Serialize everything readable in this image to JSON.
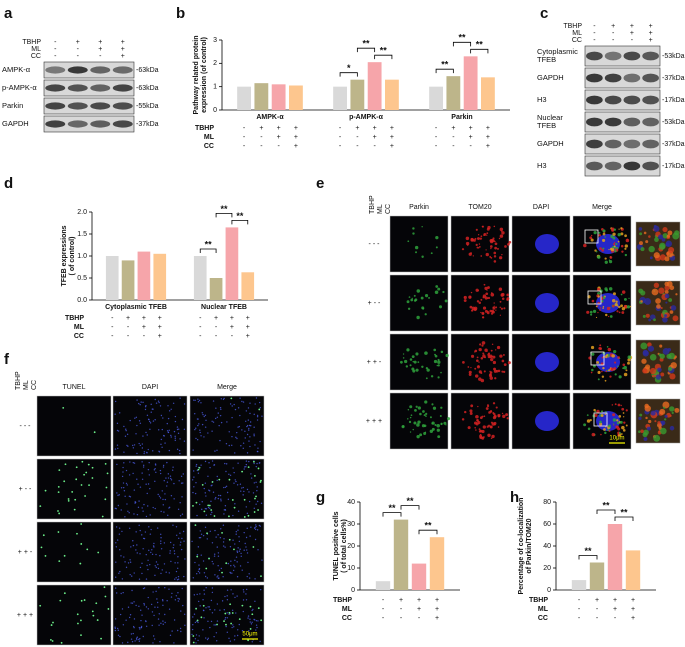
{
  "panel_labels": [
    "a",
    "b",
    "c",
    "d",
    "e",
    "f",
    "g",
    "h"
  ],
  "blot_a": {
    "header": [
      {
        "name": "TBHP",
        "marks": [
          "-",
          "+",
          "+",
          "+"
        ]
      },
      {
        "name": "ML",
        "marks": [
          "-",
          "-",
          "+",
          "+"
        ]
      },
      {
        "name": "CC",
        "marks": [
          "-",
          "-",
          "-",
          "+"
        ]
      }
    ],
    "rows": [
      {
        "label": [
          "AMPK-α"
        ],
        "size": "-63kDa"
      },
      {
        "label": [
          "p-AMPK-α"
        ],
        "size": "-63kDa"
      },
      {
        "label": [
          "Parkin"
        ],
        "size": "-55kDa"
      },
      {
        "label": [
          "GAPDH"
        ],
        "size": "-37kDa"
      }
    ]
  },
  "blot_c": {
    "header": [
      {
        "name": "TBHP",
        "marks": [
          "-",
          "+",
          "+",
          "+"
        ]
      },
      {
        "name": "ML",
        "marks": [
          "-",
          "-",
          "+",
          "+"
        ]
      },
      {
        "name": "CC",
        "marks": [
          "-",
          "-",
          "-",
          "+"
        ]
      }
    ],
    "rows": [
      {
        "label": [
          "Cytoplasmic",
          "TFEB"
        ],
        "size": "-53kDa"
      },
      {
        "label": [
          "GAPDH"
        ],
        "size": "-37kDa"
      },
      {
        "label": [
          "H3"
        ],
        "size": "-17kDa"
      },
      {
        "label": [
          "Nuclear",
          "TFEB"
        ],
        "size": "-53kDa"
      },
      {
        "label": [
          "GAPDH"
        ],
        "size": "-37kDa"
      },
      {
        "label": [
          "H3"
        ],
        "size": "-17kDa"
      }
    ]
  },
  "chart_data": [
    {
      "type": "bar",
      "ylabel": [
        "Pathway related protein",
        "expression (of control)"
      ],
      "categories": [
        "AMPK-α",
        "p-AMPK-α",
        "Parkin"
      ],
      "series": [
        {
          "color": "#d9d9d9",
          "values": [
            1.0,
            1.0,
            1.0
          ]
        },
        {
          "color": "#bdb58a",
          "values": [
            1.15,
            1.3,
            1.45
          ]
        },
        {
          "color": "#f6a5aa",
          "values": [
            1.1,
            2.05,
            2.3
          ]
        },
        {
          "color": "#fdc68e",
          "values": [
            1.05,
            1.3,
            1.4
          ]
        }
      ],
      "ylim": [
        0,
        3
      ],
      "yticks": [
        0,
        1,
        2,
        3
      ],
      "treatments": [
        {
          "name": "TBHP",
          "marks": [
            "-",
            "+",
            "+",
            "+"
          ]
        },
        {
          "name": "ML",
          "marks": [
            "-",
            "-",
            "+",
            "+"
          ]
        },
        {
          "name": "CC",
          "marks": [
            "-",
            "-",
            "-",
            "+"
          ]
        }
      ],
      "significance": [
        {
          "category": 1,
          "from": 0,
          "to": 1,
          "label": "*"
        },
        {
          "category": 1,
          "from": 1,
          "to": 2,
          "label": "**"
        },
        {
          "category": 1,
          "from": 2,
          "to": 3,
          "label": "**"
        },
        {
          "category": 2,
          "from": 0,
          "to": 1,
          "label": "**"
        },
        {
          "category": 2,
          "from": 1,
          "to": 2,
          "label": "**"
        },
        {
          "category": 2,
          "from": 2,
          "to": 3,
          "label": "**"
        }
      ]
    },
    {
      "type": "bar",
      "ylabel": [
        "TFEB expressions",
        "( of control)"
      ],
      "categories": [
        "Cytoplasmic TFEB",
        "Nuclear TFEB"
      ],
      "series": [
        {
          "color": "#d9d9d9",
          "values": [
            1.0,
            1.0
          ]
        },
        {
          "color": "#bdb58a",
          "values": [
            0.9,
            0.5
          ]
        },
        {
          "color": "#f6a5aa",
          "values": [
            1.1,
            1.65
          ]
        },
        {
          "color": "#fdc68e",
          "values": [
            1.05,
            0.63
          ]
        }
      ],
      "ylim": [
        0,
        2
      ],
      "yticks": [
        {
          "value": 0,
          "label": "0.0"
        },
        {
          "value": 0.5,
          "label": "0.5"
        },
        {
          "value": 1,
          "label": "1.0"
        },
        {
          "value": 1.5,
          "label": "1.5"
        },
        {
          "value": 2,
          "label": "2.0"
        }
      ],
      "treatments": [
        {
          "name": "TBHP",
          "marks": [
            "-",
            "+",
            "+",
            "+"
          ]
        },
        {
          "name": "ML",
          "marks": [
            "-",
            "-",
            "+",
            "+"
          ]
        },
        {
          "name": "CC",
          "marks": [
            "-",
            "-",
            "-",
            "+"
          ]
        }
      ],
      "significance": [
        {
          "category": 1,
          "from": 0,
          "to": 1,
          "label": "**"
        },
        {
          "category": 1,
          "from": 1,
          "to": 2,
          "label": "**"
        },
        {
          "category": 1,
          "from": 2,
          "to": 3,
          "label": "**"
        }
      ]
    },
    {
      "type": "bar",
      "ylabel": [
        "TUNEL positive cells",
        "( of total cells%)"
      ],
      "values": [
        4,
        32,
        12,
        24
      ],
      "colors": [
        "#d9d9d9",
        "#bdb58a",
        "#f6a5aa",
        "#fdc68e"
      ],
      "ylim": [
        0,
        40
      ],
      "yticks": [
        0,
        10,
        20,
        30,
        40
      ],
      "treatments": [
        {
          "name": "TBHP",
          "marks": [
            "-",
            "+",
            "+",
            "+"
          ]
        },
        {
          "name": "ML",
          "marks": [
            "-",
            "-",
            "+",
            "+"
          ]
        },
        {
          "name": "CC",
          "marks": [
            "-",
            "-",
            "-",
            "+"
          ]
        }
      ],
      "significance": [
        {
          "from": 0,
          "to": 1,
          "label": "**"
        },
        {
          "from": 1,
          "to": 2,
          "label": "**"
        },
        {
          "from": 2,
          "to": 3,
          "label": "**"
        }
      ]
    },
    {
      "type": "bar",
      "ylabel": [
        "Percentage of co-localization",
        "of Parkin/TOM20"
      ],
      "values": [
        9,
        25,
        60,
        36
      ],
      "colors": [
        "#d9d9d9",
        "#bdb58a",
        "#f6a5aa",
        "#fdc68e"
      ],
      "ylim": [
        0,
        80
      ],
      "yticks": [
        0,
        20,
        40,
        60,
        80
      ],
      "treatments": [
        {
          "name": "TBHP",
          "marks": [
            "-",
            "+",
            "+",
            "+"
          ]
        },
        {
          "name": "ML",
          "marks": [
            "-",
            "-",
            "+",
            "+"
          ]
        },
        {
          "name": "CC",
          "marks": [
            "-",
            "-",
            "-",
            "+"
          ]
        }
      ],
      "significance": [
        {
          "from": 0,
          "to": 1,
          "label": "**"
        },
        {
          "from": 1,
          "to": 2,
          "label": "**"
        },
        {
          "from": 2,
          "to": 3,
          "label": "**"
        }
      ]
    }
  ],
  "images_e": {
    "condition_names": [
      "TBHP",
      "ML",
      "CC"
    ],
    "columns": [
      "Parkin",
      "TOM20",
      "DAPI",
      "Merge"
    ],
    "rows": [
      "- - -",
      "+ - -",
      "+ + -",
      "+ + +"
    ],
    "scale_bar": "10μm"
  },
  "images_f": {
    "condition_names": [
      "TBHP",
      "ML",
      "CC"
    ],
    "columns": [
      "TUNEL",
      "DAPI",
      "Merge"
    ],
    "rows": [
      "- - -",
      "+ - -",
      "+ + -",
      "+ + +"
    ],
    "scale_bar": "50μm"
  }
}
